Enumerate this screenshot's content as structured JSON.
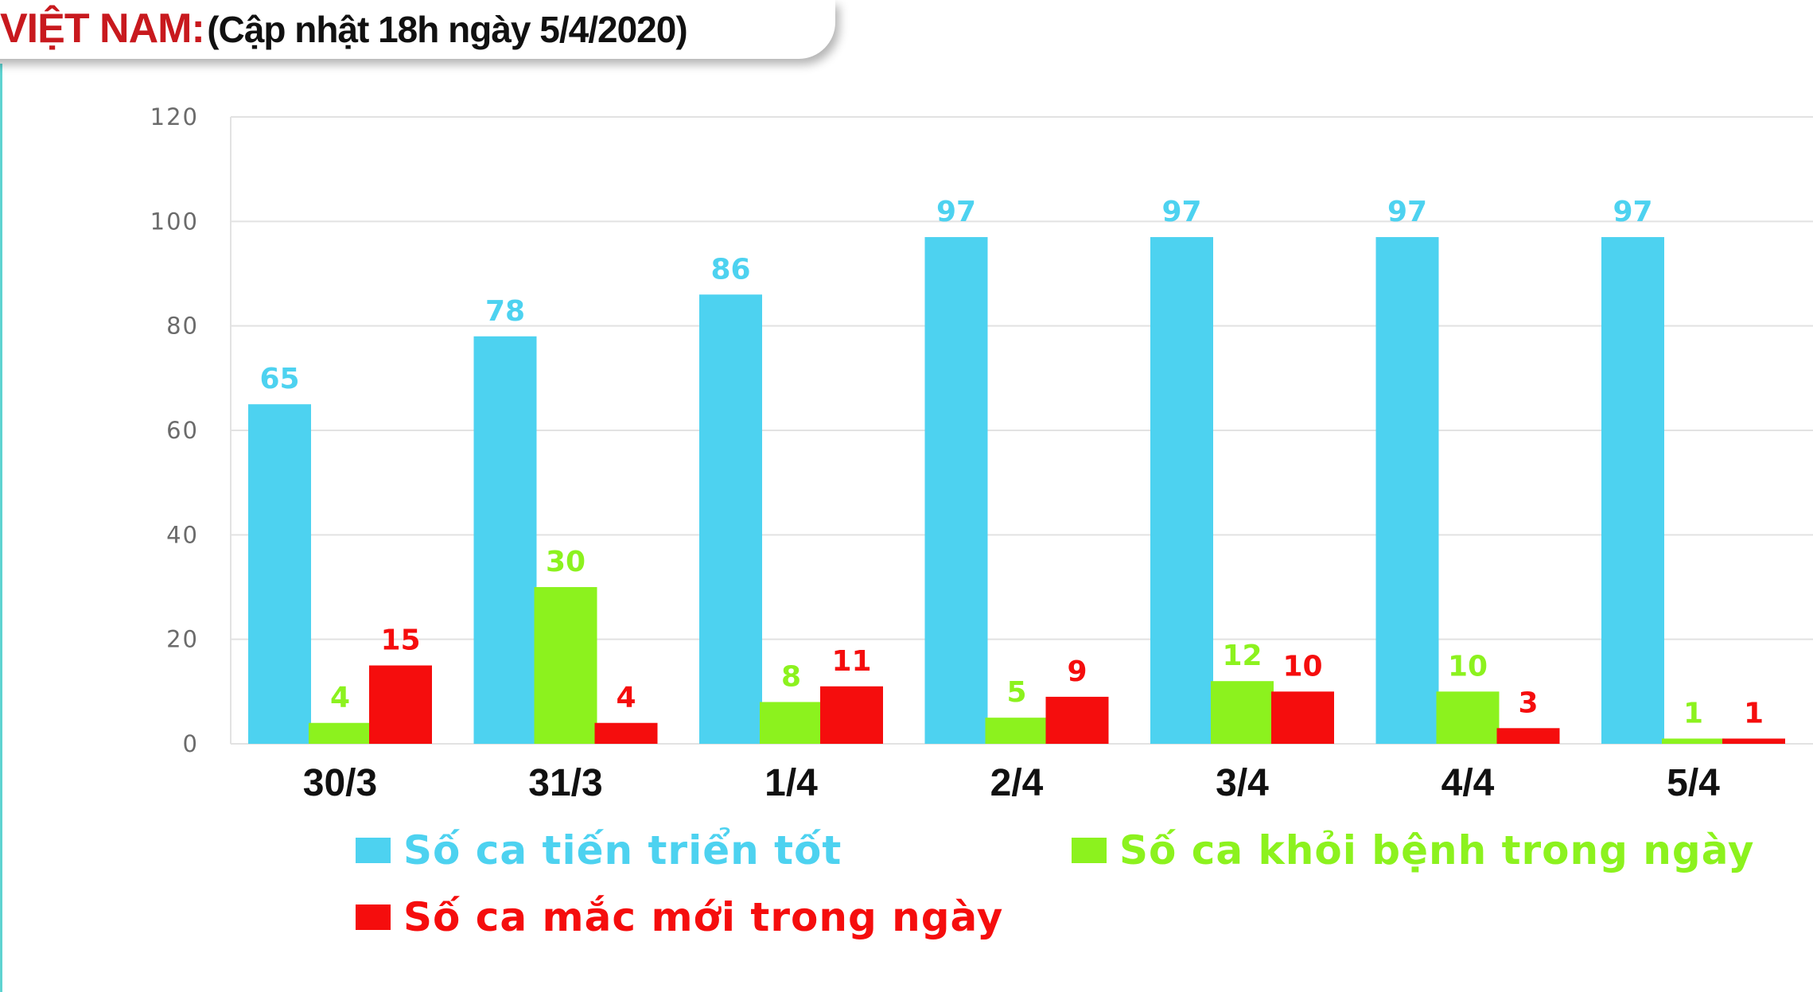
{
  "title": {
    "region": "VIỆT NAM:",
    "update": "(Cập nhật 18h ngày 5/4/2020)"
  },
  "colors": {
    "title_region": "#c8191e",
    "gridline": "#e2e2e2",
    "axis_tick_text": "#6b6b6b"
  },
  "chart_data": {
    "type": "bar",
    "categories": [
      "30/3",
      "31/3",
      "1/4",
      "2/4",
      "3/4",
      "4/4",
      "5/4"
    ],
    "series": [
      {
        "name": "Số ca tiến triển tốt",
        "color": "#4dd2f0",
        "values": [
          65,
          78,
          86,
          97,
          97,
          97,
          97
        ]
      },
      {
        "name": "Số ca khỏi bệnh trong ngày",
        "color": "#8cf21e",
        "values": [
          4,
          30,
          8,
          5,
          12,
          10,
          1
        ]
      },
      {
        "name": "Số ca mắc mới trong ngày",
        "color": "#f50d0d",
        "values": [
          15,
          4,
          11,
          9,
          10,
          3,
          1
        ]
      }
    ],
    "ylim": [
      0,
      120
    ],
    "yticks": [
      0,
      20,
      40,
      60,
      80,
      100,
      120
    ],
    "grid": true,
    "data_labels": true,
    "legend_position": "bottom"
  }
}
